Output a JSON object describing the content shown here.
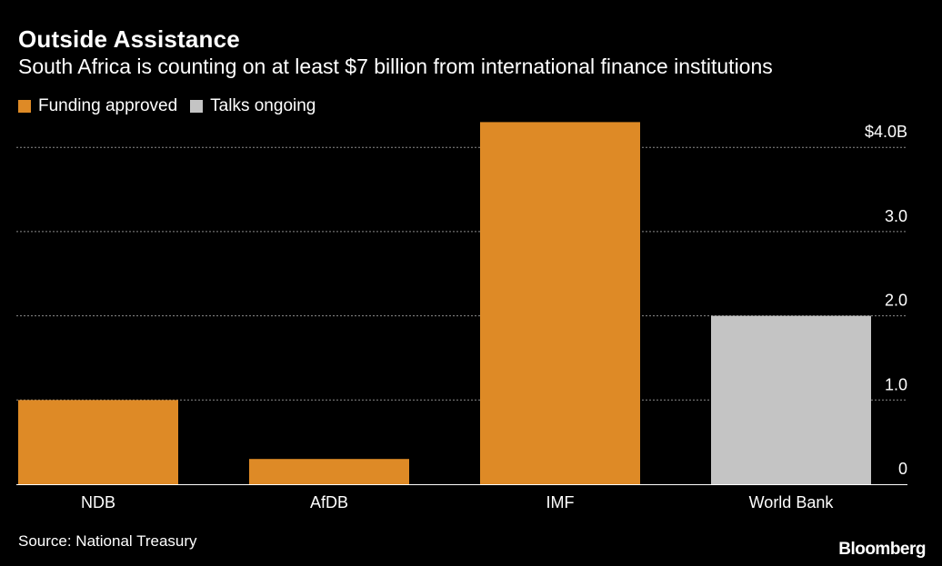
{
  "chart_data": {
    "type": "bar",
    "title": "Outside Assistance",
    "subtitle": "South Africa is counting on at least $7 billion from international finance institutions",
    "categories": [
      "NDB",
      "AfDB",
      "IMF",
      "World Bank"
    ],
    "values": [
      1.0,
      0.3,
      4.3,
      2.0
    ],
    "status": [
      "Funding approved",
      "Funding approved",
      "Funding approved",
      "Talks ongoing"
    ],
    "legend": [
      {
        "label": "Funding approved",
        "color": "#DE8A26"
      },
      {
        "label": "Talks ongoing",
        "color": "#C4C4C4"
      }
    ],
    "yticks": [
      0,
      1,
      2,
      3,
      4
    ],
    "ytick_labels": [
      "0",
      "1.0",
      "2.0",
      "3.0",
      "$4.0B"
    ],
    "ylim": [
      0,
      4.3
    ],
    "xlabel": "",
    "ylabel": "",
    "grid": true
  },
  "source": "Source: National Treasury",
  "brand": "Bloomberg"
}
